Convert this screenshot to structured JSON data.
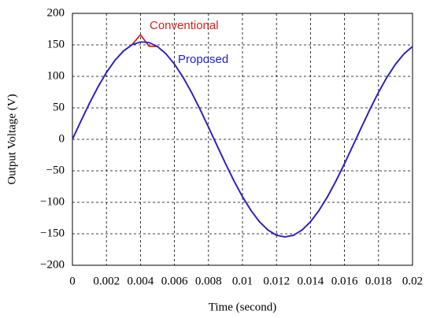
{
  "chart_data": {
    "type": "line",
    "x_label": "Time (second)",
    "y_label": "Output Voltage (V)",
    "x": [
      0,
      0.0005,
      0.001,
      0.0015,
      0.002,
      0.0025,
      0.003,
      0.0035,
      0.004,
      0.0045,
      0.005,
      0.0055,
      0.006,
      0.0065,
      0.007,
      0.0075,
      0.008,
      0.0085,
      0.009,
      0.0095,
      0.01,
      0.0105,
      0.011,
      0.0115,
      0.012,
      0.0125,
      0.013,
      0.0135,
      0.014,
      0.0145,
      0.015,
      0.0155,
      0.016,
      0.0165,
      0.017,
      0.0175,
      0.018,
      0.0185,
      0.019,
      0.0195,
      0.02
    ],
    "series": [
      {
        "name": "Conventional",
        "color": "#d62020",
        "values": [
          0,
          29.0,
          57.1,
          83.0,
          106.1,
          125.4,
          140.2,
          150.1,
          166,
          148,
          147.4,
          135.8,
          119.4,
          98.8,
          74.7,
          47.9,
          19.4,
          -9.7,
          -38.5,
          -66.0,
          -91.1,
          -113.0,
          -130.9,
          -144.1,
          -152.3,
          -155,
          -152.3,
          -144.1,
          -130.9,
          -113.0,
          -91.1,
          -66.0,
          -38.5,
          -9.7,
          19.4,
          47.9,
          74.7,
          98.8,
          119.4,
          135.8,
          147.4
        ]
      },
      {
        "name": "Proposed",
        "color": "#2020d0",
        "values": [
          0,
          29.0,
          57.1,
          83.0,
          106.1,
          125.4,
          140.2,
          150.1,
          154.7,
          153.8,
          147.4,
          135.8,
          119.4,
          98.8,
          74.7,
          47.9,
          19.4,
          -9.7,
          -38.5,
          -66.0,
          -91.1,
          -113.0,
          -130.9,
          -144.1,
          -152.3,
          -155,
          -152.3,
          -144.1,
          -130.9,
          -113.0,
          -91.1,
          -66.0,
          -38.5,
          -9.7,
          19.4,
          47.9,
          74.7,
          98.8,
          119.4,
          135.8,
          147.4
        ]
      }
    ],
    "xlim": [
      0,
      0.02
    ],
    "xticks": [
      0,
      0.002,
      0.004,
      0.006,
      0.008,
      0.01,
      0.012,
      0.014,
      0.016,
      0.018,
      0.02
    ],
    "ylim": [
      -200,
      200
    ],
    "yticks": [
      {
        "value": -200,
        "label": "−200"
      },
      {
        "value": -150,
        "label": "−150"
      },
      {
        "value": -100,
        "label": "−100"
      },
      {
        "value": -50,
        "label": "−50"
      },
      0,
      50,
      100,
      150,
      200
    ],
    "grid": true
  }
}
